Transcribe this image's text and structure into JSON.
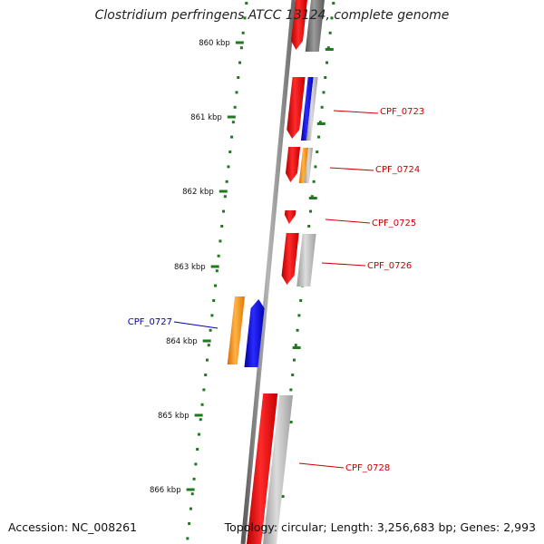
{
  "title": "Clostridium perfringens ATCC 13124, complete genome",
  "footer": {
    "accession": "Accession: NC_008261",
    "topology": "Topology: circular; Length: 3,256,683 bp; Genes: 2,993"
  },
  "colors": {
    "backbone": "#7a7a7a",
    "ticks": "#1f7a1f",
    "cds": "#ee0000",
    "cds_highlight": "#1a00ee",
    "gray_feature": "#aaaaaa",
    "orange_feature": "#ff8c00",
    "label_red": "#cc0000",
    "label_blue": "#0000bb"
  },
  "ticks": [
    {
      "label": "860 kbp"
    },
    {
      "label": "861 kbp"
    },
    {
      "label": "862 kbp"
    },
    {
      "label": "863 kbp"
    },
    {
      "label": "864 kbp"
    },
    {
      "label": "865 kbp"
    },
    {
      "label": "866 kbp"
    }
  ],
  "genes": [
    {
      "label": "CPF_0723"
    },
    {
      "label": "CPF_0724"
    },
    {
      "label": "CPF_0725"
    },
    {
      "label": "CPF_0726"
    },
    {
      "label": "CPF_0727"
    },
    {
      "label": "CPF_0728"
    }
  ]
}
